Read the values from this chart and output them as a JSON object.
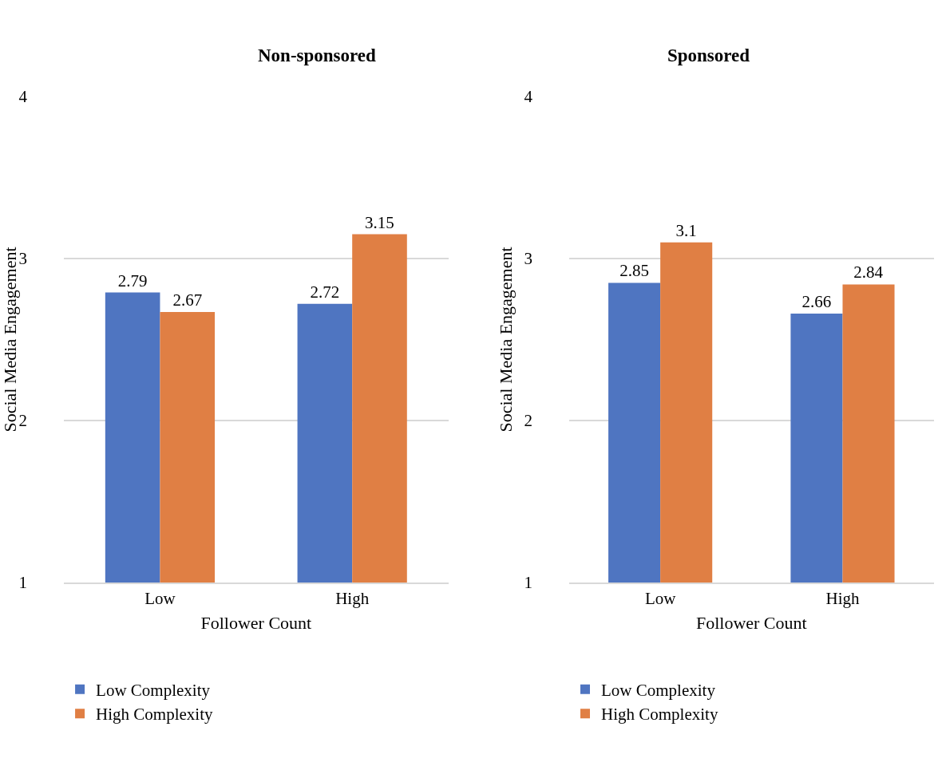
{
  "chart_data": [
    {
      "type": "bar",
      "title": "Non-sponsored",
      "xlabel": "Follower Count",
      "ylabel": "Social Media Engagement",
      "categories": [
        "Low",
        "High"
      ],
      "series": [
        {
          "name": "Low Complexity",
          "color": "#4f75c1",
          "values": [
            2.79,
            2.72
          ]
        },
        {
          "name": "High Complexity",
          "color": "#e07f44",
          "values": [
            2.67,
            3.15
          ]
        }
      ],
      "ylim": [
        1,
        4
      ],
      "yticks": [
        1,
        2,
        3,
        4
      ],
      "grid": "y",
      "legend": "bottom left",
      "data_labels": true
    },
    {
      "type": "bar",
      "title": "Sponsored",
      "xlabel": "Follower Count",
      "ylabel": "Social Media Engagement",
      "categories": [
        "Low",
        "High"
      ],
      "series": [
        {
          "name": "Low Complexity",
          "color": "#4f75c1",
          "values": [
            2.85,
            2.66
          ]
        },
        {
          "name": "High Complexity",
          "color": "#e07f44",
          "values": [
            3.1,
            2.84
          ]
        }
      ],
      "ylim": [
        1,
        4
      ],
      "yticks": [
        1,
        2,
        3,
        4
      ],
      "grid": "y",
      "legend": "bottom left",
      "data_labels": true
    }
  ]
}
